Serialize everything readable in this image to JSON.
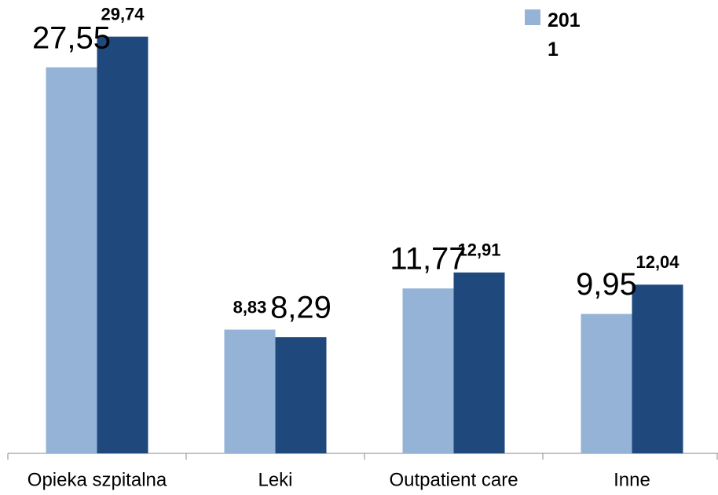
{
  "chart_data": {
    "type": "bar",
    "categories": [
      "Opieka szpitalna",
      "Leki",
      "Outpatient care",
      "Inne"
    ],
    "series": [
      {
        "name": "2011",
        "color": "#95b3d7",
        "values": [
          27.55,
          8.83,
          11.77,
          9.95
        ],
        "value_labels": [
          "27,55",
          "8,83",
          "11,77",
          "9,95"
        ]
      },
      {
        "color": "#1f497d",
        "values": [
          29.74,
          8.29,
          12.91,
          12.04
        ],
        "value_labels": [
          "29,74",
          "8,29",
          "12,91",
          "12,04"
        ]
      }
    ],
    "ylim": [
      0,
      30
    ]
  }
}
